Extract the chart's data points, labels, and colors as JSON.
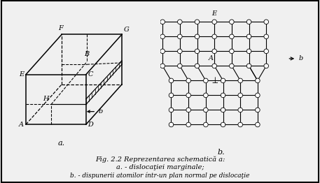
{
  "title_line1": "Fig. 2.2 Reprezentarea schematică a:",
  "title_line2": "a. - dislocaţiei marginale;",
  "title_line3": "b. - dispunerii atomilor íntr-un plan normal pe dislocaţie",
  "label_a": "a.",
  "label_b": "b.",
  "bg_color": "#f0f0f0",
  "border_color": "#000000",
  "atom_color": "#ffffff",
  "atom_edge_color": "#000000",
  "grid_line_color": "#000000"
}
